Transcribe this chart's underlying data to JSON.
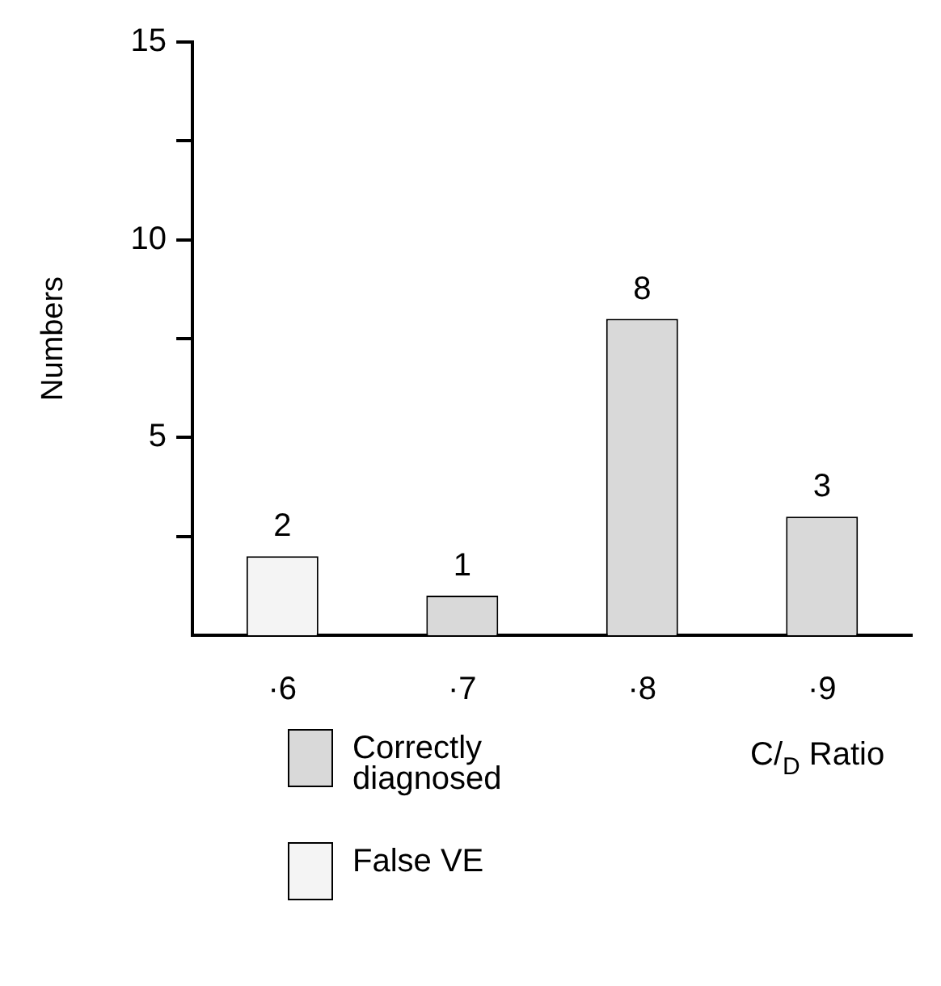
{
  "chart_data": {
    "type": "bar",
    "categories": [
      "·6",
      "·7",
      "·8",
      "·9"
    ],
    "series": [
      {
        "name": "Correctly diagnosed",
        "color": "#d9d9d9",
        "values": [
          null,
          1,
          8,
          3
        ]
      },
      {
        "name": "False VE",
        "color": "#f4f4f4",
        "values": [
          2,
          null,
          null,
          null
        ]
      }
    ],
    "xlabel": "C/$_{D}$ Ratio",
    "ylabel": "Numbers",
    "ylim": [
      0,
      15
    ],
    "yticks": [
      {
        "value": 2.5,
        "label": null
      },
      5,
      {
        "value": 7.5,
        "label": null
      },
      10,
      {
        "value": 12.5,
        "label": null
      },
      15
    ],
    "data_labels": true,
    "legend": "bottom",
    "grid": false
  }
}
